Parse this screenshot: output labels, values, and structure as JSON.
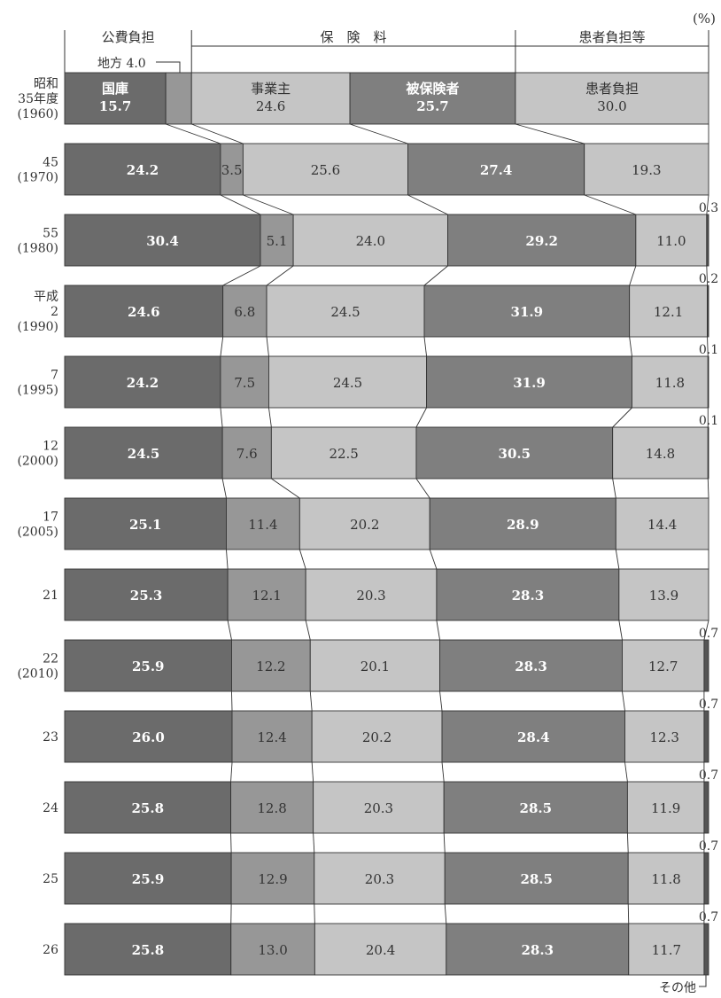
{
  "chart_data": {
    "type": "bar",
    "orientation": "horizontal-stacked-100",
    "unit_label": "(%)",
    "header_groups": [
      {
        "label": "公費負担"
      },
      {
        "label": "保　険　料"
      },
      {
        "label": "患者負担等"
      }
    ],
    "segment_labels": [
      "国庫",
      "地方",
      "事業主",
      "被保険者",
      "患者負担",
      "その他"
    ],
    "local_note": "地方 4.0",
    "other_note": "その他",
    "colors": {
      "kokko": "#6b6b6b",
      "chiho": "#979797",
      "jigyonushi": "#c5c5c5",
      "hihokensha": "#7f7f7f",
      "kanja": "#c5c5c5",
      "sonota": "#555555",
      "border": "#333333"
    },
    "rows": [
      {
        "label_lines": [
          "昭和",
          "35年度",
          "(1960)"
        ],
        "values": [
          15.7,
          4.0,
          24.6,
          25.7,
          30.0,
          0
        ],
        "display": [
          "15.7",
          "",
          "24.6",
          "25.7",
          "30.0",
          ""
        ],
        "names": [
          "国庫",
          "",
          "事業主",
          "被保険者",
          "患者負担",
          ""
        ],
        "other_label": ""
      },
      {
        "label_lines": [
          "45",
          "(1970)"
        ],
        "values": [
          24.2,
          3.5,
          25.6,
          27.4,
          19.3,
          0
        ],
        "display": [
          "24.2",
          "3.5",
          "25.6",
          "27.4",
          "19.3",
          ""
        ],
        "names": [
          "",
          "",
          "",
          "",
          "",
          ""
        ],
        "other_label": ""
      },
      {
        "label_lines": [
          "55",
          "(1980)"
        ],
        "values": [
          30.4,
          5.1,
          24.0,
          29.2,
          11.0,
          0.3
        ],
        "display": [
          "30.4",
          "5.1",
          "24.0",
          "29.2",
          "11.0",
          ""
        ],
        "names": [
          "",
          "",
          "",
          "",
          "",
          ""
        ],
        "other_label": "0.3"
      },
      {
        "label_lines": [
          "平成",
          "2",
          "(1990)"
        ],
        "values": [
          24.6,
          6.8,
          24.5,
          31.9,
          12.1,
          0.2
        ],
        "display": [
          "24.6",
          "6.8",
          "24.5",
          "31.9",
          "12.1",
          ""
        ],
        "names": [
          "",
          "",
          "",
          "",
          "",
          ""
        ],
        "other_label": "0.2"
      },
      {
        "label_lines": [
          "7",
          "(1995)"
        ],
        "values": [
          24.2,
          7.5,
          24.5,
          31.9,
          11.8,
          0.1
        ],
        "display": [
          "24.2",
          "7.5",
          "24.5",
          "31.9",
          "11.8",
          ""
        ],
        "names": [
          "",
          "",
          "",
          "",
          "",
          ""
        ],
        "other_label": "0.1"
      },
      {
        "label_lines": [
          "12",
          "(2000)"
        ],
        "values": [
          24.5,
          7.6,
          22.5,
          30.5,
          14.8,
          0.1
        ],
        "display": [
          "24.5",
          "7.6",
          "22.5",
          "30.5",
          "14.8",
          ""
        ],
        "names": [
          "",
          "",
          "",
          "",
          "",
          ""
        ],
        "other_label": "0.1"
      },
      {
        "label_lines": [
          "17",
          "(2005)"
        ],
        "values": [
          25.1,
          11.4,
          20.2,
          28.9,
          14.4,
          0
        ],
        "display": [
          "25.1",
          "11.4",
          "20.2",
          "28.9",
          "14.4",
          ""
        ],
        "names": [
          "",
          "",
          "",
          "",
          "",
          ""
        ],
        "other_label": ""
      },
      {
        "label_lines": [
          "21"
        ],
        "values": [
          25.3,
          12.1,
          20.3,
          28.3,
          13.9,
          0
        ],
        "display": [
          "25.3",
          "12.1",
          "20.3",
          "28.3",
          "13.9",
          ""
        ],
        "names": [
          "",
          "",
          "",
          "",
          "",
          ""
        ],
        "other_label": ""
      },
      {
        "label_lines": [
          "22",
          "(2010)"
        ],
        "values": [
          25.9,
          12.2,
          20.1,
          28.3,
          12.7,
          0.7
        ],
        "display": [
          "25.9",
          "12.2",
          "20.1",
          "28.3",
          "12.7",
          ""
        ],
        "names": [
          "",
          "",
          "",
          "",
          "",
          ""
        ],
        "other_label": "0.7"
      },
      {
        "label_lines": [
          "23"
        ],
        "values": [
          26.0,
          12.4,
          20.2,
          28.4,
          12.3,
          0.7
        ],
        "display": [
          "26.0",
          "12.4",
          "20.2",
          "28.4",
          "12.3",
          ""
        ],
        "names": [
          "",
          "",
          "",
          "",
          "",
          ""
        ],
        "other_label": "0.7"
      },
      {
        "label_lines": [
          "24"
        ],
        "values": [
          25.8,
          12.8,
          20.3,
          28.5,
          11.9,
          0.7
        ],
        "display": [
          "25.8",
          "12.8",
          "20.3",
          "28.5",
          "11.9",
          ""
        ],
        "names": [
          "",
          "",
          "",
          "",
          "",
          ""
        ],
        "other_label": "0.7"
      },
      {
        "label_lines": [
          "25"
        ],
        "values": [
          25.9,
          12.9,
          20.3,
          28.5,
          11.8,
          0.7
        ],
        "display": [
          "25.9",
          "12.9",
          "20.3",
          "28.5",
          "11.8",
          ""
        ],
        "names": [
          "",
          "",
          "",
          "",
          "",
          ""
        ],
        "other_label": "0.7"
      },
      {
        "label_lines": [
          "26"
        ],
        "values": [
          25.8,
          13.0,
          20.4,
          28.3,
          11.7,
          0.7
        ],
        "display": [
          "25.8",
          "13.0",
          "20.4",
          "28.3",
          "11.7",
          ""
        ],
        "names": [
          "",
          "",
          "",
          "",
          "",
          ""
        ],
        "other_label": "0.7"
      }
    ]
  }
}
